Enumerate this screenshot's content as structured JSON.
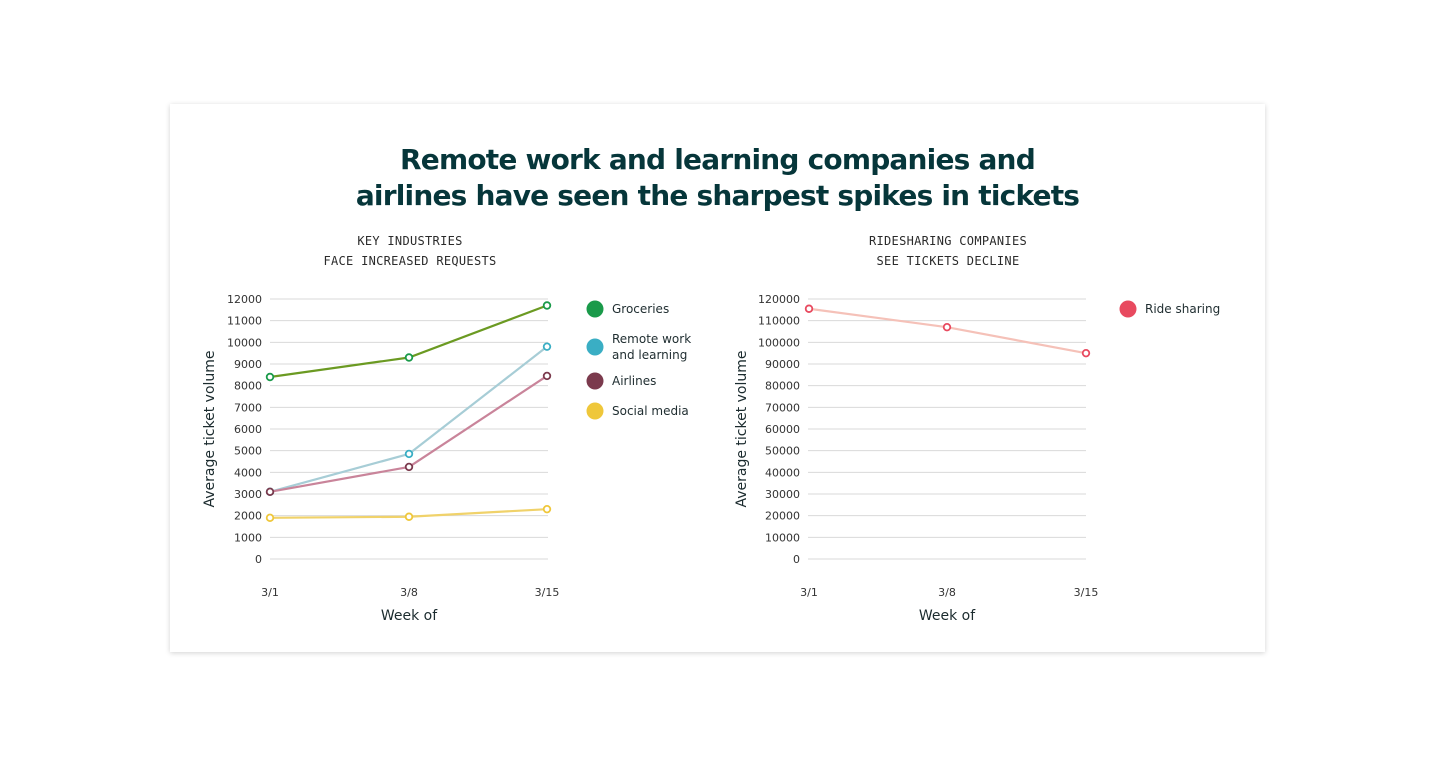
{
  "title_lines": [
    "Remote work and learning companies and",
    "airlines have seen the sharpest spikes in tickets"
  ],
  "chart_data": [
    {
      "type": "line",
      "title_lines": [
        "KEY INDUSTRIES",
        "FACE INCREASED REQUESTS"
      ],
      "xlabel": "Week of",
      "ylabel": "Average ticket volume",
      "categories": [
        "3/1",
        "3/8",
        "3/15"
      ],
      "ylim": [
        0,
        12000
      ],
      "yticks": [
        0,
        1000,
        2000,
        3000,
        4000,
        5000,
        6000,
        7000,
        8000,
        9000,
        10000,
        11000,
        12000
      ],
      "grid": true,
      "legend_position": "right",
      "series": [
        {
          "name": "Groceries",
          "values": [
            8400,
            9300,
            11700
          ],
          "color": "#6b9a22",
          "legend_color": "#1a9a4a"
        },
        {
          "name": "Remote work and learning",
          "values": [
            3100,
            4850,
            9800
          ],
          "color": "#a7cdd6",
          "legend_color": "#3aaec4"
        },
        {
          "name": "Airlines",
          "values": [
            3100,
            4250,
            8450
          ],
          "color": "#c9849a",
          "legend_color": "#7b3a4d"
        },
        {
          "name": "Social media",
          "values": [
            1900,
            1950,
            2300
          ],
          "color": "#f0d26a",
          "legend_color": "#efc73a"
        }
      ]
    },
    {
      "type": "line",
      "title_lines": [
        "RIDESHARING COMPANIES",
        "SEE TICKETS DECLINE"
      ],
      "xlabel": "Week of",
      "ylabel": "Average ticket volume",
      "categories": [
        "3/1",
        "3/8",
        "3/15"
      ],
      "ylim": [
        0,
        120000
      ],
      "yticks": [
        0,
        10000,
        20000,
        30000,
        40000,
        50000,
        60000,
        70000,
        80000,
        90000,
        100000,
        110000,
        120000
      ],
      "grid": true,
      "legend_position": "right",
      "series": [
        {
          "name": "Ride sharing",
          "values": [
            115500,
            107000,
            95000
          ],
          "color": "#f5c1b8",
          "legend_color": "#e84a5f"
        }
      ]
    }
  ]
}
